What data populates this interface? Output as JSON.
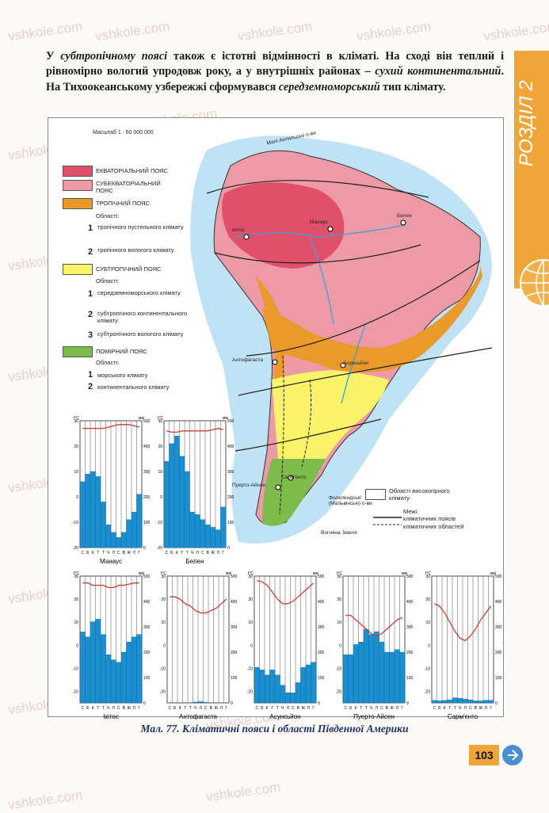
{
  "watermark": "vshkole.com",
  "section_tab": "РОЗДІЛ 2",
  "paragraph": {
    "p1": "У ",
    "i1": "субтропічному поясі",
    "p2": " також є істотні відмінності в кліматі. На сході він теплий і рівномірно вологий упродовж року, а у внутрішніх районах – ",
    "i2": "сухий континентальний",
    "p3": ". На Тихоокеанському узбережжі сформувався ",
    "i3": "середземноморський",
    "p4": " тип клімату."
  },
  "map": {
    "scale": "Масштаб 1 : 60 000 000",
    "legend": {
      "equatorial": "ЕКВАТОРІАЛЬНИЙ ПОЯС",
      "subequatorial": "СУБЕКВАТОРІАЛЬНИЙ ПОЯС",
      "tropical": "ТРОПІЧНИЙ ПОЯС",
      "areas": "Області:",
      "trop1": "тропічного пустельного клімату",
      "trop2": "тропічного вологого клімату",
      "subtropical": "СУБТРОПІЧНИЙ ПОЯС",
      "sub1": "середземноморського клімату",
      "sub2": "субтропічного континентального клімату",
      "sub3": "субтропічного вологого клімату",
      "temperate": "ПОМІРНИЙ ПОЯС",
      "temp1": "морського клімату",
      "temp2": "континентального клімату",
      "highland": "Області високогірного клімату",
      "bounds": "Межі:",
      "belts": "кліматичних поясів",
      "areas_b": "кліматичних областей"
    },
    "places": {
      "lesser_antilles": "Малі Антильські о-ви",
      "iquitos": "Ікітос",
      "manaus": "Манаус",
      "belem": "Белен",
      "antofagasta": "Антофагаста",
      "asuncion": "Асунсьйон",
      "sarmiento": "Сарм'єнто",
      "puerto_aysen": "Пуерто-Айсен",
      "falklands": "Фолклендські (Мальвінські) о-ви",
      "cape_horn": "Вогняна Земля"
    }
  },
  "climate_charts": [
    {
      "name": "Манаус",
      "temp": [
        27,
        27,
        27,
        27,
        27,
        27.5,
        28,
        28.5,
        28.5,
        28.5,
        28,
        27.5
      ],
      "precip": [
        260,
        290,
        300,
        280,
        180,
        90,
        60,
        40,
        60,
        110,
        140,
        210
      ],
      "tmin": -20,
      "tmax": 30,
      "pmax": 500,
      "pstep": 100
    },
    {
      "name": "Белен",
      "temp": [
        26,
        25.5,
        25.5,
        26,
        26,
        26,
        26,
        26,
        26,
        26.5,
        27,
        26.5
      ],
      "precip": [
        340,
        410,
        440,
        360,
        300,
        140,
        130,
        110,
        90,
        80,
        70,
        160
      ],
      "tmin": -20,
      "tmax": 30,
      "pmax": 500,
      "pstep": 100
    },
    {
      "name": "Ікітос",
      "temp": [
        27,
        27,
        26,
        26,
        26,
        25,
        25,
        26,
        26,
        26.5,
        27,
        27
      ],
      "precip": [
        280,
        260,
        320,
        330,
        270,
        190,
        170,
        160,
        200,
        240,
        260,
        270
      ],
      "tmin": -25,
      "tmax": 30,
      "pmax": 500,
      "pstep": 100
    },
    {
      "name": "Антофагаста",
      "temp": [
        21,
        21,
        20,
        18,
        17,
        15,
        14,
        14,
        15,
        16,
        18,
        20
      ],
      "precip": [
        0,
        0,
        0,
        0,
        1,
        3,
        5,
        2,
        1,
        0,
        0,
        0
      ],
      "tmin": -25,
      "tmax": 30,
      "pmax": 500,
      "pstep": 100
    },
    {
      "name": "Асунсьйон",
      "temp": [
        28,
        27.5,
        26,
        23,
        20,
        18,
        18,
        19,
        21,
        23,
        25,
        27
      ],
      "precip": [
        140,
        130,
        110,
        130,
        110,
        70,
        40,
        40,
        80,
        140,
        150,
        160
      ],
      "tmin": -25,
      "tmax": 30,
      "pmax": 500,
      "pstep": 100
    },
    {
      "name": "Пуерто-Айсен",
      "temp": [
        13,
        13,
        11,
        9,
        7,
        5,
        4,
        5,
        7,
        9,
        11,
        12
      ],
      "precip": [
        190,
        190,
        230,
        240,
        290,
        270,
        280,
        240,
        200,
        200,
        210,
        200
      ],
      "tmin": -25,
      "tmax": 30,
      "pmax": 500,
      "pstep": 100
    },
    {
      "name": "Сарм'єнто",
      "temp": [
        18,
        17,
        14,
        10,
        6,
        3,
        2,
        4,
        7,
        11,
        14,
        17
      ],
      "precip": [
        10,
        8,
        10,
        12,
        20,
        18,
        15,
        12,
        8,
        8,
        10,
        10
      ],
      "tmin": -25,
      "tmax": 30,
      "pmax": 500,
      "pstep": 100
    }
  ],
  "chart_axis": {
    "t_unit": "t°C",
    "p_unit": "мм",
    "months": [
      "С",
      "Б",
      "К",
      "Т",
      "Т",
      "Ч",
      "Л",
      "С",
      "В",
      "Ж",
      "Л",
      "Г"
    ]
  },
  "caption": "Мал. 77. Кліматичні пояси і області Південної Америки",
  "page_number": "103",
  "colors": {
    "equatorial": "#e0506a",
    "subequatorial": "#ee9aa6",
    "tropical": "#e99a2a",
    "subtropical": "#fbf46a",
    "temperate": "#7dbb4a",
    "ocean": "#bfe3f4",
    "bar": "#1b8fd0",
    "line": "#d23a2f",
    "tab": "#f0a53a"
  }
}
